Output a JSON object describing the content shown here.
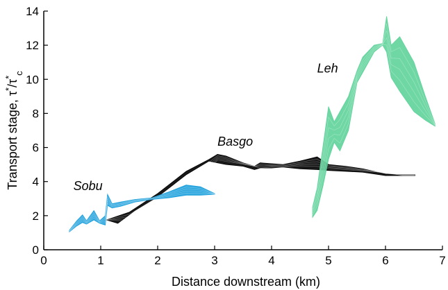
{
  "chart_data": {
    "type": "area",
    "xlabel": "Distance downstream (km)",
    "ylabel": "Transport stage, τ*/τ*c",
    "ylabel_parts": {
      "prefix": "Transport stage, ",
      "t1": "τ",
      "s1": "*",
      "slash": "/",
      "t2": "τ",
      "s2": "*",
      "sub": "c"
    },
    "xlim": [
      0,
      7
    ],
    "ylim": [
      0,
      14
    ],
    "xticks": [
      "0",
      "1",
      "2",
      "3",
      "4",
      "5",
      "6",
      "7"
    ],
    "yticks": [
      "0",
      "2",
      "4",
      "6",
      "8",
      "10",
      "12",
      "14"
    ],
    "grid": false,
    "annotations": [
      {
        "text": "Sobu",
        "x": 0.52,
        "y": 3.5
      },
      {
        "text": "Basgo",
        "x": 3.05,
        "y": 6.1
      },
      {
        "text": "Leh",
        "x": 4.8,
        "y": 10.4
      }
    ],
    "series": [
      {
        "color": "#000000",
        "upper": [
          [
            1.1,
            1.75
          ],
          [
            1.5,
            2.2
          ],
          [
            2.0,
            3.3
          ],
          [
            2.5,
            4.6
          ],
          [
            2.9,
            5.3
          ],
          [
            3.05,
            5.6
          ],
          [
            3.2,
            5.5
          ],
          [
            3.5,
            5.1
          ],
          [
            3.7,
            4.9
          ],
          [
            3.8,
            5.1
          ],
          [
            4.0,
            5.05
          ],
          [
            4.2,
            5.0
          ],
          [
            4.5,
            5.2
          ],
          [
            4.8,
            5.45
          ],
          [
            5.0,
            5.0
          ],
          [
            5.3,
            4.9
          ],
          [
            5.6,
            4.75
          ],
          [
            6.0,
            4.45
          ],
          [
            6.3,
            4.4
          ],
          [
            6.52,
            4.4
          ]
        ],
        "lower": [
          [
            6.52,
            4.35
          ],
          [
            6.3,
            4.35
          ],
          [
            6.0,
            4.35
          ],
          [
            5.6,
            4.55
          ],
          [
            5.3,
            4.6
          ],
          [
            5.0,
            4.65
          ],
          [
            4.8,
            4.7
          ],
          [
            4.5,
            4.75
          ],
          [
            4.2,
            4.85
          ],
          [
            4.0,
            4.8
          ],
          [
            3.8,
            4.8
          ],
          [
            3.7,
            4.7
          ],
          [
            3.5,
            4.9
          ],
          [
            3.2,
            5.0
          ],
          [
            3.05,
            5.1
          ],
          [
            2.9,
            5.2
          ],
          [
            2.5,
            4.4
          ],
          [
            2.0,
            3.1
          ],
          [
            1.6,
            2.3
          ],
          [
            1.3,
            1.55
          ],
          [
            1.1,
            1.75
          ]
        ]
      },
      {
        "color": "#1ca0dc",
        "upper": [
          [
            0.45,
            1.15
          ],
          [
            0.58,
            1.7
          ],
          [
            0.68,
            2.05
          ],
          [
            0.75,
            1.7
          ],
          [
            0.88,
            2.3
          ],
          [
            0.98,
            1.7
          ],
          [
            1.08,
            2.0
          ],
          [
            1.12,
            3.25
          ],
          [
            1.2,
            2.7
          ],
          [
            1.35,
            2.8
          ],
          [
            1.6,
            2.95
          ],
          [
            1.9,
            3.05
          ],
          [
            2.2,
            3.4
          ],
          [
            2.5,
            3.8
          ],
          [
            2.75,
            3.7
          ],
          [
            3.0,
            3.3
          ]
        ],
        "lower": [
          [
            3.0,
            3.25
          ],
          [
            2.75,
            3.2
          ],
          [
            2.5,
            3.2
          ],
          [
            2.2,
            3.05
          ],
          [
            1.9,
            2.95
          ],
          [
            1.6,
            2.8
          ],
          [
            1.35,
            2.55
          ],
          [
            1.2,
            2.45
          ],
          [
            1.12,
            2.6
          ],
          [
            1.08,
            1.45
          ],
          [
            0.98,
            1.55
          ],
          [
            0.88,
            1.75
          ],
          [
            0.75,
            1.5
          ],
          [
            0.68,
            1.6
          ],
          [
            0.58,
            1.4
          ],
          [
            0.45,
            1.05
          ]
        ]
      },
      {
        "color": "#5fd39a",
        "upper": [
          [
            4.72,
            2.5
          ],
          [
            4.8,
            3.6
          ],
          [
            4.9,
            6.0
          ],
          [
            5.0,
            8.4
          ],
          [
            5.1,
            7.5
          ],
          [
            5.2,
            8.1
          ],
          [
            5.35,
            9.0
          ],
          [
            5.5,
            10.5
          ],
          [
            5.6,
            11.3
          ],
          [
            5.8,
            12.0
          ],
          [
            5.95,
            12.1
          ],
          [
            6.02,
            13.7
          ],
          [
            6.1,
            12.0
          ],
          [
            6.25,
            12.5
          ],
          [
            6.5,
            11.0
          ],
          [
            6.7,
            9.0
          ],
          [
            6.87,
            7.4
          ]
        ],
        "lower": [
          [
            6.87,
            7.25
          ],
          [
            6.7,
            7.6
          ],
          [
            6.5,
            8.1
          ],
          [
            6.25,
            9.3
          ],
          [
            6.1,
            10.1
          ],
          [
            6.02,
            11.6
          ],
          [
            5.95,
            12.0
          ],
          [
            5.8,
            11.6
          ],
          [
            5.6,
            10.4
          ],
          [
            5.5,
            9.8
          ],
          [
            5.35,
            7.0
          ],
          [
            5.2,
            5.8
          ],
          [
            5.1,
            6.3
          ],
          [
            5.0,
            5.3
          ],
          [
            4.9,
            3.7
          ],
          [
            4.8,
            2.3
          ],
          [
            4.72,
            1.9
          ]
        ]
      }
    ]
  }
}
